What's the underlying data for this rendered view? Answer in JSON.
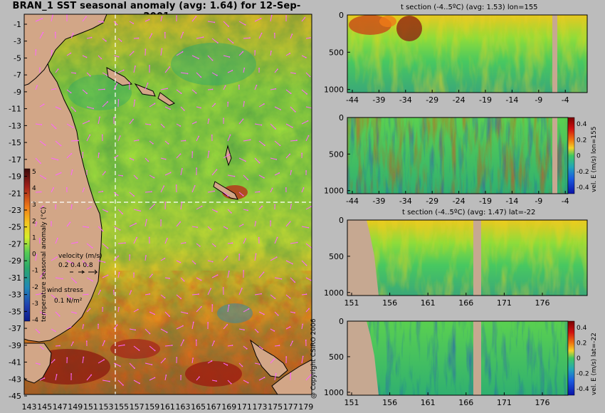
{
  "title": "BRAN_1  SST seasonal anomaly (avg: 1.64) for 12-Sep-2001",
  "colors": {
    "land": "#d2a687",
    "coast": "#000000",
    "arrows": "#ff66ff",
    "crosshair": "#ffffff",
    "sst_scale": [
      "#3a0a0a",
      "#8b1a10",
      "#c83a10",
      "#ef7a18",
      "#f5c21e",
      "#e6ef2a",
      "#a8e53a",
      "#55cc55",
      "#2aa86a",
      "#1f88b8",
      "#1f3fb0",
      "#0a1a8a"
    ],
    "vel_scale": [
      "#7a0000",
      "#d01010",
      "#f07a10",
      "#f4d22a",
      "#9ee24a",
      "#2bc56a",
      "#22a6b8",
      "#1a5be0",
      "#0a12a8"
    ]
  },
  "chart_data": [
    {
      "type": "heatmap",
      "panel": "map",
      "title": "BRAN_1  SST seasonal anomaly (avg: 1.64) for 12-Sep-2001",
      "x_ticks": [
        "143",
        "145",
        "147",
        "149",
        "151",
        "153",
        "155",
        "157",
        "159",
        "161",
        "163",
        "165",
        "167",
        "169",
        "171",
        "173",
        "175",
        "177",
        "179"
      ],
      "y_ticks": [
        "-1",
        "-3",
        "-5",
        "-7",
        "-9",
        "-11",
        "-13",
        "-15",
        "-17",
        "-19",
        "-21",
        "-23",
        "-25",
        "-27",
        "-29",
        "-31",
        "-33",
        "-35",
        "-37",
        "-39",
        "-41",
        "-43",
        "-45"
      ],
      "xlim": [
        143,
        180
      ],
      "ylim": [
        -45,
        0
      ],
      "crosshair": {
        "lon": 155,
        "lat": -22
      },
      "colorbar": {
        "label": "temperature seasonal anomaly (°C)",
        "ticks": [
          "5",
          "4",
          "3",
          "2",
          "1",
          "0",
          "-1",
          "-2",
          "-3",
          "-4"
        ],
        "range": [
          -4,
          5
        ]
      },
      "legend": {
        "velocity_label": "velocity (m/s)",
        "velocity_values": "0.2 0.4 0.8",
        "wind_label": "wind stress",
        "wind_value": "0.1 N/m²"
      }
    },
    {
      "type": "heatmap",
      "panel": "t section lon=155",
      "title": "t section (-4..5ºC) (avg: 1.53) lon=155",
      "x_ticks": [
        "-44",
        "-39",
        "-34",
        "-29",
        "-24",
        "-19",
        "-14",
        "-9",
        "-4"
      ],
      "y_ticks": [
        "0",
        "500",
        "1000"
      ],
      "xlim": [
        -45,
        -1
      ],
      "ylim": [
        1050,
        0
      ]
    },
    {
      "type": "heatmap",
      "panel": "vel E lon=155",
      "title": "",
      "x_ticks": [
        "-44",
        "-39",
        "-34",
        "-29",
        "-24",
        "-19",
        "-14",
        "-9",
        "-4"
      ],
      "y_ticks": [
        "0",
        "500",
        "1000"
      ],
      "xlim": [
        -45,
        -1
      ],
      "ylim": [
        1050,
        0
      ],
      "colorbar": {
        "label": "vel. E (m/s) lon=155",
        "ticks": [
          "0.4",
          "0.2",
          "0",
          "-0.2",
          "-0.4"
        ],
        "range": [
          -0.4,
          0.4
        ]
      }
    },
    {
      "type": "heatmap",
      "panel": "t section lat=-22",
      "title": "t section (-4..5ºC) (avg: 1.47) lat=-22",
      "x_ticks": [
        "151",
        "156",
        "161",
        "166",
        "171",
        "176"
      ],
      "y_ticks": [
        "0",
        "500",
        "1000"
      ],
      "xlim": [
        150,
        180
      ],
      "ylim": [
        1050,
        0
      ]
    },
    {
      "type": "heatmap",
      "panel": "vel E lat=-22",
      "title": "",
      "x_ticks": [
        "151",
        "156",
        "161",
        "166",
        "171",
        "176"
      ],
      "y_ticks": [
        "0",
        "500",
        "1000"
      ],
      "xlim": [
        150,
        180
      ],
      "ylim": [
        1050,
        0
      ],
      "colorbar": {
        "label": "vel. E (m/s) lat=-22",
        "ticks": [
          "0.4",
          "0.2",
          "0",
          "-0.2",
          "-0.4"
        ],
        "range": [
          -0.4,
          0.4
        ]
      }
    }
  ],
  "copyright": "@ Copyright CSIRO 2006"
}
